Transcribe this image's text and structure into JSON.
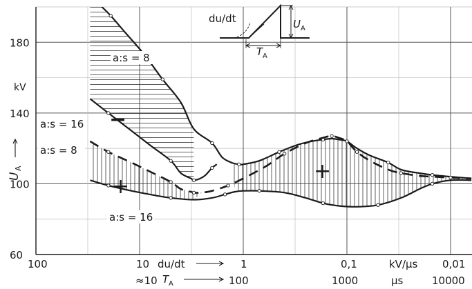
{
  "chart_data": {
    "type": "line",
    "xlabel": "du/dt",
    "x_unit": "kV/µs",
    "x_scale": "log-reversed",
    "x_range": [
      100,
      0.0063
    ],
    "x_ticks": [
      "100",
      "10",
      "1",
      "0,1",
      "0,01"
    ],
    "t_label": "T",
    "t_sub": "A",
    "t_unit": "µs",
    "t_ticks": [
      "≈10",
      "100",
      "1000",
      "10000"
    ],
    "ylabel": "U",
    "y_sub": "A",
    "y_unit": "kV",
    "ylim": [
      60,
      200
    ],
    "y_ticks": [
      60,
      100,
      140,
      180
    ],
    "grid": true,
    "series": [
      {
        "name": "a:s = 8",
        "polarity": "−",
        "x": [
          25,
          19,
          14,
          9,
          6,
          4,
          3,
          2,
          1.6,
          1.3,
          1.1,
          1,
          0.7,
          0.45,
          0.3,
          0.22,
          0.17,
          0.14,
          0.12,
          0.1,
          0.08,
          0.06,
          0.04,
          0.03,
          0.02,
          0.015,
          0.01,
          0.0063
        ],
        "y": [
          202,
          195,
          186,
          173,
          159,
          146,
          131,
          123,
          115,
          112,
          111,
          111,
          113,
          118,
          122,
          124,
          125,
          125.5,
          125,
          124,
          120,
          116,
          112,
          108,
          106,
          105,
          104,
          103
        ]
      },
      {
        "name": "a:s = 16",
        "polarity": "−",
        "x": [
          30,
          20,
          12,
          8,
          5,
          4,
          3.2,
          3,
          2.6,
          2.3,
          2,
          1.8
        ],
        "y": [
          148,
          140,
          130,
          122,
          113,
          106,
          103,
          102,
          103,
          105,
          109,
          111
        ]
      },
      {
        "name": "a:s = 8",
        "polarity": "+",
        "x": [
          30,
          20,
          12,
          8,
          5,
          4,
          3.2,
          3,
          2.5,
          2,
          1.4,
          1,
          0.6,
          0.4,
          0.25,
          0.17,
          0.14,
          0.12,
          0.1,
          0.08,
          0.06,
          0.04,
          0.03,
          0.02,
          0.015,
          0.01,
          0.0063
        ],
        "y": [
          124,
          118,
          112,
          107,
          101,
          97,
          95.5,
          95,
          95,
          96,
          99,
          103,
          110,
          117,
          123,
          126,
          127,
          126,
          124,
          118,
          113,
          108,
          106,
          104.5,
          104,
          103.5,
          103
        ]
      },
      {
        "name": "a:s = 16",
        "polarity": "+",
        "x": [
          30,
          20,
          12,
          8,
          5,
          3,
          2,
          1.5,
          1.2,
          1,
          0.7,
          0.4,
          0.25,
          0.17,
          0.12,
          0.08,
          0.05,
          0.03,
          0.02,
          0.015,
          0.01,
          0.0063
        ],
        "y": [
          102,
          99,
          96,
          94,
          92,
          91,
          92,
          94,
          95.5,
          96,
          96,
          95,
          92,
          89,
          87.5,
          87,
          88,
          92,
          97,
          100,
          102,
          102
        ]
      }
    ],
    "annotations": [
      "−",
      "+"
    ]
  },
  "inset": {
    "slope_label": "du/dt",
    "height_label": "U",
    "height_sub": "A",
    "width_label": "T",
    "width_sub": "A"
  },
  "colors": {
    "ink": "#1a1a1a",
    "grid": "#bdbdbd",
    "background": "#ffffff"
  }
}
